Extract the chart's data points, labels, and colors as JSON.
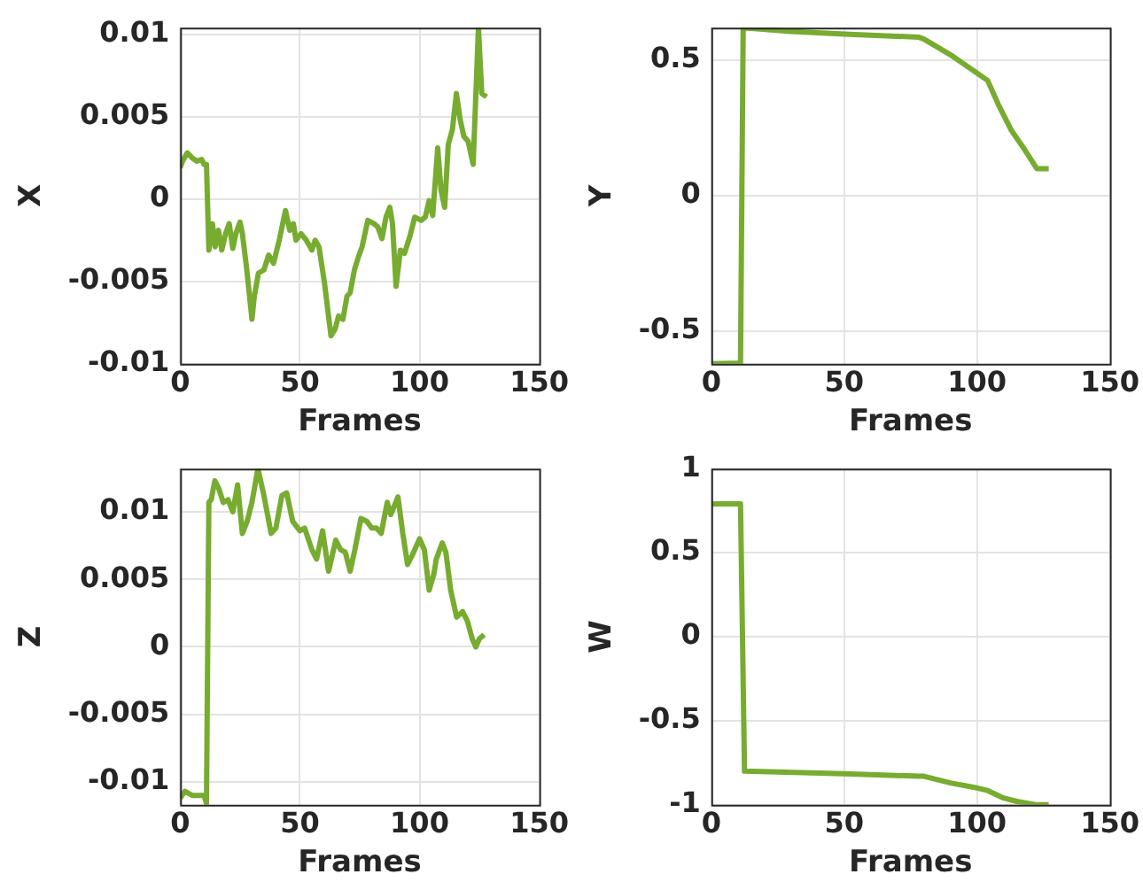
{
  "chart_data": [
    {
      "type": "line",
      "xlabel": "Frames",
      "ylabel": "X",
      "xlim": [
        0,
        150
      ],
      "xticks": [
        0,
        50,
        100,
        150
      ],
      "ylim": [
        -0.01,
        0.0104
      ],
      "yticks": [
        -0.01,
        -0.005,
        0,
        0.005,
        0.01
      ],
      "grid": true,
      "x": [
        0,
        1,
        3,
        5,
        7,
        9,
        10,
        11,
        12,
        13.5,
        14.6,
        16,
        17.4,
        19,
        20.5,
        22,
        23.3,
        25,
        26,
        27.7,
        30,
        31,
        32.7,
        35,
        37,
        39,
        41.4,
        44,
        45.8,
        47.3,
        48.4,
        50.5,
        52.7,
        55,
        56.4,
        58,
        60.3,
        63,
        64.7,
        66.2,
        68,
        69.7,
        71,
        72.8,
        74.5,
        76,
        78.4,
        81,
        82.6,
        84.3,
        86,
        87.6,
        88.7,
        90.2,
        92,
        93.7,
        95.9,
        98,
        100.7,
        102.4,
        104,
        105.5,
        107.6,
        109,
        110.5,
        112,
        113.7,
        115.4,
        117,
        118.5,
        120.3,
        122.4,
        124.6,
        126,
        128
      ],
      "series": [
        {
          "color": "#77ac30",
          "values": [
            0.0019,
            0.0023,
            0.0028,
            0.0025,
            0.0023,
            0.0024,
            0.0021,
            0.0021,
            -0.0031,
            -0.0015,
            -0.0029,
            -0.0019,
            -0.0031,
            -0.0021,
            -0.0015,
            -0.003,
            -0.0021,
            -0.0014,
            -0.0021,
            -0.0041,
            -0.0073,
            -0.0059,
            -0.0045,
            -0.0043,
            -0.0034,
            -0.0039,
            -0.0025,
            -0.0007,
            -0.0019,
            -0.0015,
            -0.0025,
            -0.0021,
            -0.0025,
            -0.0031,
            -0.0025,
            -0.0029,
            -0.0051,
            -0.0083,
            -0.0079,
            -0.0071,
            -0.0073,
            -0.0059,
            -0.0057,
            -0.0043,
            -0.0035,
            -0.0029,
            -0.0013,
            -0.0015,
            -0.0017,
            -0.0024,
            -0.0011,
            -0.0005,
            -0.0015,
            -0.0053,
            -0.0031,
            -0.0033,
            -0.0023,
            -0.0011,
            -0.0013,
            -0.0011,
            -0.0001,
            -0.001,
            0.0031,
            0.0005,
            -0.0005,
            0.0033,
            0.0042,
            0.0064,
            0.0048,
            0.0038,
            0.0035,
            0.0021,
            0.0104,
            0.0064,
            0.0062
          ]
        }
      ]
    },
    {
      "type": "line",
      "xlabel": "Frames",
      "ylabel": "Y",
      "xlim": [
        0,
        150
      ],
      "xticks": [
        0,
        50,
        100,
        150
      ],
      "ylim": [
        -0.62,
        0.62
      ],
      "yticks": [
        -0.5,
        0,
        0.5
      ],
      "grid": true,
      "x": [
        0,
        11,
        12,
        15,
        30,
        50,
        78,
        80,
        90,
        104,
        108,
        113,
        118,
        122.5,
        127
      ],
      "series": [
        {
          "color": "#77ac30",
          "values": [
            -0.62,
            -0.617,
            0.62,
            0.617,
            0.606,
            0.596,
            0.585,
            0.578,
            0.52,
            0.425,
            0.337,
            0.24,
            0.169,
            0.1,
            0.1
          ]
        }
      ]
    },
    {
      "type": "line",
      "xlabel": "Frames",
      "ylabel": "Z",
      "xlim": [
        0,
        150
      ],
      "xticks": [
        0,
        50,
        100,
        150
      ],
      "ylim": [
        -0.0117,
        0.0132
      ],
      "yticks": [
        -0.01,
        -0.005,
        0,
        0.005,
        0.01
      ],
      "grid": true,
      "x": [
        0,
        2,
        5,
        10,
        11,
        12,
        13,
        14.5,
        16,
        18,
        20,
        22,
        24,
        26,
        28,
        30,
        32.5,
        35,
        38,
        40,
        42.5,
        44.5,
        47,
        50,
        52,
        55,
        57,
        59.5,
        62,
        65,
        67,
        69,
        71,
        73,
        75.5,
        78,
        80,
        82,
        84,
        86.5,
        88,
        91,
        93,
        95,
        97,
        100,
        102,
        104,
        106,
        107,
        109.5,
        111,
        113,
        115.5,
        118,
        120,
        122,
        123.5,
        125,
        127
      ],
      "series": [
        {
          "color": "#77ac30",
          "values": [
            -0.0112,
            -0.0107,
            -0.011,
            -0.011,
            -0.0116,
            0.0107,
            0.0109,
            0.0123,
            0.0118,
            0.0107,
            0.0109,
            0.01,
            0.012,
            0.0084,
            0.0093,
            0.0107,
            0.0132,
            0.0112,
            0.0084,
            0.0088,
            0.0112,
            0.0114,
            0.0093,
            0.0086,
            0.0088,
            0.0072,
            0.0065,
            0.0086,
            0.0056,
            0.0079,
            0.0072,
            0.007,
            0.0056,
            0.0072,
            0.0095,
            0.0093,
            0.0088,
            0.0088,
            0.0084,
            0.0107,
            0.0098,
            0.0111,
            0.0084,
            0.0061,
            0.0068,
            0.008,
            0.0072,
            0.0042,
            0.0054,
            0.0065,
            0.0077,
            0.007,
            0.0042,
            0.0022,
            0.0026,
            0.0019,
            0.0006,
            0,
            0.0006,
            0.0009
          ]
        }
      ]
    },
    {
      "type": "line",
      "xlabel": "Frames",
      "ylabel": "W",
      "xlim": [
        0,
        150
      ],
      "xticks": [
        0,
        50,
        100,
        150
      ],
      "ylim": [
        -1,
        1
      ],
      "yticks": [
        -1,
        -0.5,
        0,
        0.5,
        1
      ],
      "grid": true,
      "x": [
        0,
        11,
        12.5,
        50,
        78,
        80,
        90,
        100,
        104,
        110,
        115,
        122,
        127
      ],
      "series": [
        {
          "color": "#77ac30",
          "values": [
            0.79,
            0.79,
            -0.8,
            -0.815,
            -0.83,
            -0.83,
            -0.87,
            -0.9,
            -0.915,
            -0.96,
            -0.98,
            -1,
            -1
          ]
        }
      ]
    }
  ]
}
